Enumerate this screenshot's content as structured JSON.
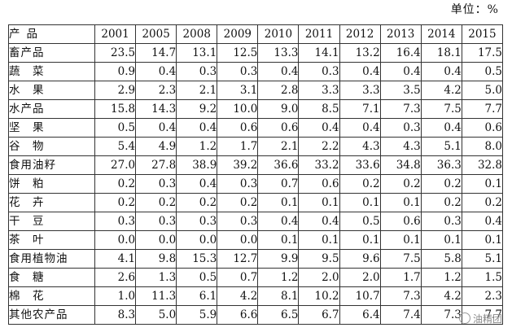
{
  "unit_label": "单位：%",
  "table": {
    "product_header": "产品",
    "years": [
      "2001",
      "2005",
      "2008",
      "2009",
      "2010",
      "2011",
      "2012",
      "2013",
      "2014",
      "2015"
    ],
    "rows": [
      {
        "product": "畜产品",
        "values": [
          "23.5",
          "14.7",
          "13.1",
          "12.5",
          "13.3",
          "14.1",
          "13.2",
          "16.4",
          "18.1",
          "17.5"
        ]
      },
      {
        "product": "蔬　菜",
        "values": [
          "0.9",
          "0.4",
          "0.3",
          "0.3",
          "0.4",
          "0.3",
          "0.4",
          "0.4",
          "0.4",
          "0.5"
        ]
      },
      {
        "product": "水　果",
        "values": [
          "2.9",
          "2.3",
          "2.1",
          "3.1",
          "2.8",
          "3.3",
          "3.3",
          "3.5",
          "4.2",
          "5.0"
        ]
      },
      {
        "product": "水产品",
        "values": [
          "15.8",
          "14.3",
          "9.2",
          "10.0",
          "9.0",
          "8.5",
          "7.1",
          "7.3",
          "7.5",
          "7.7"
        ]
      },
      {
        "product": "坚　果",
        "values": [
          "0.5",
          "0.4",
          "0.4",
          "0.6",
          "0.6",
          "0.4",
          "0.4",
          "0.3",
          "0.4",
          "0.6"
        ]
      },
      {
        "product": "谷　物",
        "values": [
          "5.4",
          "4.9",
          "1.2",
          "1.7",
          "2.1",
          "2.2",
          "4.3",
          "4.3",
          "5.1",
          "8.0"
        ]
      },
      {
        "product": "食用油籽",
        "values": [
          "27.0",
          "27.8",
          "38.9",
          "39.2",
          "36.6",
          "33.2",
          "33.6",
          "34.8",
          "36.3",
          "32.8"
        ]
      },
      {
        "product": "饼　粕",
        "values": [
          "0.2",
          "0.3",
          "0.4",
          "0.3",
          "0.7",
          "0.6",
          "0.2",
          "0.2",
          "0.2",
          "0.1"
        ]
      },
      {
        "product": "花　卉",
        "values": [
          "0.2",
          "0.2",
          "0.2",
          "0.2",
          "0.1",
          "0.1",
          "0.1",
          "0.1",
          "0.2",
          "0.2"
        ]
      },
      {
        "product": "干　豆",
        "values": [
          "0.3",
          "0.3",
          "0.3",
          "0.3",
          "0.4",
          "0.4",
          "0.5",
          "0.6",
          "0.3",
          "0.4"
        ]
      },
      {
        "product": "茶　叶",
        "values": [
          "0.0",
          "0.0",
          "0.0",
          "0.0",
          "0.1",
          "0.1",
          "0.1",
          "0.1",
          "0.1",
          "0.1"
        ]
      },
      {
        "product": "食用植物油",
        "values": [
          "4.1",
          "9.8",
          "15.3",
          "12.7",
          "9.9",
          "9.5",
          "9.6",
          "7.5",
          "5.8",
          "5.1"
        ]
      },
      {
        "product": "食　糖",
        "values": [
          "2.6",
          "1.3",
          "0.5",
          "0.7",
          "1.2",
          "2.0",
          "2.0",
          "1.7",
          "1.2",
          "1.5"
        ]
      },
      {
        "product": "棉　花",
        "values": [
          "1.0",
          "11.3",
          "6.1",
          "4.2",
          "8.1",
          "10.2",
          "10.7",
          "7.3",
          "4.2",
          "2.3"
        ]
      },
      {
        "product": "其他农产品",
        "values": [
          "8.3",
          "5.0",
          "5.9",
          "6.6",
          "6.5",
          "6.7",
          "6.4",
          "7.4",
          "7.3",
          "7.7"
        ]
      }
    ]
  },
  "watermark": {
    "icon": "wechat-icon",
    "text": "油精团"
  }
}
